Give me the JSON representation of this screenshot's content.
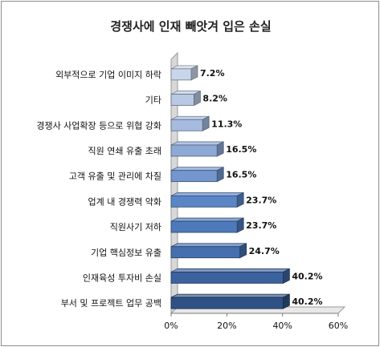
{
  "chart_data": {
    "type": "bar",
    "orientation": "horizontal",
    "title": "경쟁사에 인재 빼앗겨 입은 손실",
    "categories": [
      "외부적으로 기업 이미지 하락",
      "기타",
      "경쟁사 사업확장 등으로 위협 강화",
      "직원 연쇄 유출 초래",
      "고객 유출 및 관리에 차질",
      "업계 내 경쟁력 약화",
      "직원사기 저하",
      "기업 핵심정보 유출",
      "인재육성 투자비 손실",
      "부서 및 프로젝트 업무 공백"
    ],
    "values": [
      7.2,
      8.2,
      11.3,
      16.5,
      16.5,
      23.7,
      23.7,
      24.7,
      40.2,
      40.2
    ],
    "value_labels": [
      "7.2%",
      "8.2%",
      "11.3%",
      "16.5%",
      "16.5%",
      "23.7%",
      "23.7%",
      "24.7%",
      "40.2%",
      "40.2%"
    ],
    "xlim": [
      0,
      60
    ],
    "x_ticks": [
      0,
      20,
      40,
      60
    ],
    "x_tick_labels": [
      "0%",
      "20%",
      "40%",
      "60%"
    ],
    "grid": false,
    "legend": "none",
    "bar_style": "3d",
    "bar_colors": [
      "#c9d6ea",
      "#b9c9e4",
      "#a6bbdf",
      "#8fa9d6",
      "#7296cd",
      "#5b86c6",
      "#4e79ba",
      "#456fae",
      "#3c639f",
      "#2f5285"
    ]
  }
}
